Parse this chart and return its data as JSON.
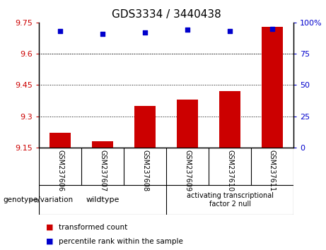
{
  "title": "GDS3334 / 3440438",
  "samples": [
    "GSM237606",
    "GSM237607",
    "GSM237608",
    "GSM237609",
    "GSM237610",
    "GSM237611"
  ],
  "transformed_counts": [
    9.22,
    9.18,
    9.35,
    9.38,
    9.42,
    9.73
  ],
  "percentile_ranks": [
    93,
    91,
    92,
    94,
    93,
    95
  ],
  "ylim_left": [
    9.15,
    9.75
  ],
  "ylim_right": [
    0,
    100
  ],
  "yticks_left": [
    9.15,
    9.3,
    9.45,
    9.6,
    9.75
  ],
  "yticks_right": [
    0,
    25,
    50,
    75,
    100
  ],
  "ytick_labels_right": [
    "0",
    "25",
    "50",
    "75",
    "100%"
  ],
  "bar_color": "#cc0000",
  "dot_color": "#0000cc",
  "wildtype_label": "wildtype",
  "atf2null_label": "activating transcriptional\nfactor 2 null",
  "group_bg_color": "#99ee99",
  "sample_bg_color": "#cccccc",
  "legend_red_label": "transformed count",
  "legend_blue_label": "percentile rank within the sample",
  "genotype_label": "genotype/variation",
  "title_fontsize": 11,
  "tick_fontsize": 8,
  "label_fontsize": 8
}
